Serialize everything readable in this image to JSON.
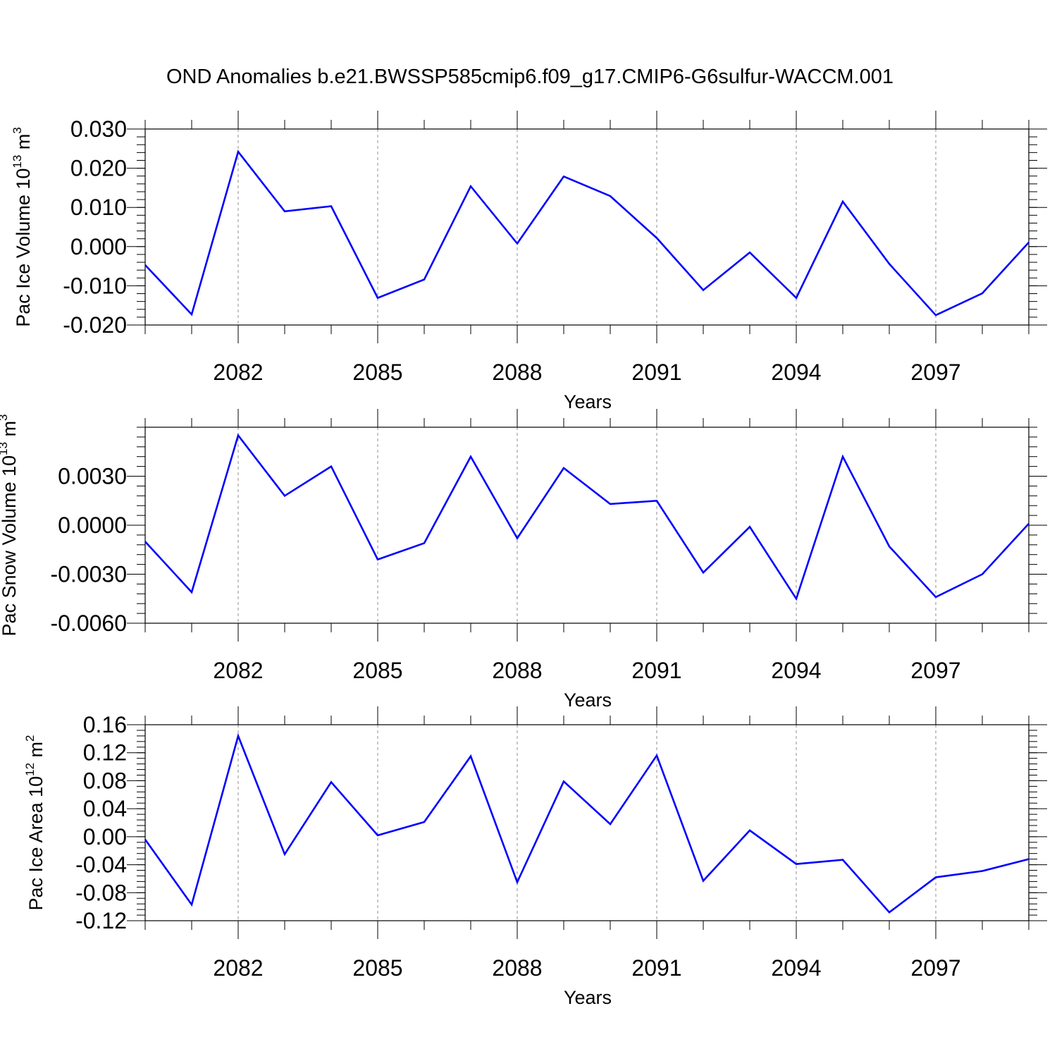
{
  "title": "OND Anomalies b.e21.BWSSP585cmip6.f09_g17.CMIP6-G6sulfur-WACCM.001",
  "colors": {
    "line": "#0000ff",
    "axis": "#000000",
    "grid": "#8c8c8c"
  },
  "chart_data": [
    {
      "type": "line",
      "xlabel": "Years",
      "ylabel": "Pac Ice Volume 10",
      "ylabel_sup1": "13",
      "ylabel_unit": " m",
      "ylabel_sup2": "3",
      "ylim": [
        -0.02,
        0.03
      ],
      "xlim": [
        2080,
        2099
      ],
      "yticks": [
        -0.02,
        -0.01,
        0.0,
        0.01,
        0.02,
        0.03
      ],
      "ytick_labels": [
        "-0.020",
        "-0.010",
        "0.000",
        "0.010",
        "0.020",
        "0.030"
      ],
      "xticks": [
        2082,
        2085,
        2088,
        2091,
        2094,
        2097
      ],
      "xtick_labels": [
        "2082",
        "2085",
        "2088",
        "2091",
        "2094",
        "2097"
      ],
      "x": [
        2080,
        2081,
        2082,
        2083,
        2084,
        2085,
        2086,
        2087,
        2088,
        2089,
        2090,
        2091,
        2092,
        2093,
        2094,
        2095,
        2096,
        2097,
        2098,
        2099
      ],
      "values": [
        -0.0047,
        -0.0173,
        0.0242,
        0.009,
        0.0103,
        -0.0131,
        -0.0084,
        0.0154,
        0.0008,
        0.0179,
        0.0129,
        0.0022,
        -0.0111,
        -0.0015,
        -0.0131,
        0.0115,
        -0.0044,
        -0.0175,
        -0.0119,
        0.0011
      ]
    },
    {
      "type": "line",
      "xlabel": "Years",
      "ylabel": "Pac Snow Volume 10",
      "ylabel_sup1": "13",
      "ylabel_unit": " m",
      "ylabel_sup2": "3",
      "ylim": [
        -0.006,
        0.006
      ],
      "xlim": [
        2080,
        2099
      ],
      "yticks": [
        -0.006,
        -0.003,
        0.0,
        0.003
      ],
      "ytick_labels": [
        "-0.0060",
        "-0.0030",
        "0.0000",
        "0.0030"
      ],
      "xticks": [
        2082,
        2085,
        2088,
        2091,
        2094,
        2097
      ],
      "xtick_labels": [
        "2082",
        "2085",
        "2088",
        "2091",
        "2094",
        "2097"
      ],
      "x": [
        2080,
        2081,
        2082,
        2083,
        2084,
        2085,
        2086,
        2087,
        2088,
        2089,
        2090,
        2091,
        2092,
        2093,
        2094,
        2095,
        2096,
        2097,
        2098,
        2099
      ],
      "values": [
        -0.001,
        -0.0041,
        0.0055,
        0.0018,
        0.0036,
        -0.0021,
        -0.0011,
        0.0042,
        -0.0008,
        0.0035,
        0.0013,
        0.0015,
        -0.0029,
        -0.0001,
        -0.0045,
        0.0042,
        -0.0013,
        -0.0044,
        -0.003,
        0.0001
      ]
    },
    {
      "type": "line",
      "xlabel": "Years",
      "ylabel": "Pac Ice Area 10",
      "ylabel_sup1": "12",
      "ylabel_unit": " m",
      "ylabel_sup2": "2",
      "ylim": [
        -0.12,
        0.16
      ],
      "xlim": [
        2080,
        2099
      ],
      "yticks": [
        -0.12,
        -0.08,
        -0.04,
        0.0,
        0.04,
        0.08,
        0.12,
        0.16
      ],
      "ytick_labels": [
        "-0.12",
        "-0.08",
        "-0.04",
        "0.00",
        "0.04",
        "0.08",
        "0.12",
        "0.16"
      ],
      "xticks": [
        2082,
        2085,
        2088,
        2091,
        2094,
        2097
      ],
      "xtick_labels": [
        "2082",
        "2085",
        "2088",
        "2091",
        "2094",
        "2097"
      ],
      "x": [
        2080,
        2081,
        2082,
        2083,
        2084,
        2085,
        2086,
        2087,
        2088,
        2089,
        2090,
        2091,
        2092,
        2093,
        2094,
        2095,
        2096,
        2097,
        2098,
        2099
      ],
      "values": [
        -0.004,
        -0.097,
        0.144,
        -0.025,
        0.078,
        0.002,
        0.021,
        0.115,
        -0.065,
        0.079,
        0.018,
        0.116,
        -0.063,
        0.009,
        -0.039,
        -0.033,
        -0.108,
        -0.058,
        -0.049,
        -0.032
      ]
    }
  ]
}
